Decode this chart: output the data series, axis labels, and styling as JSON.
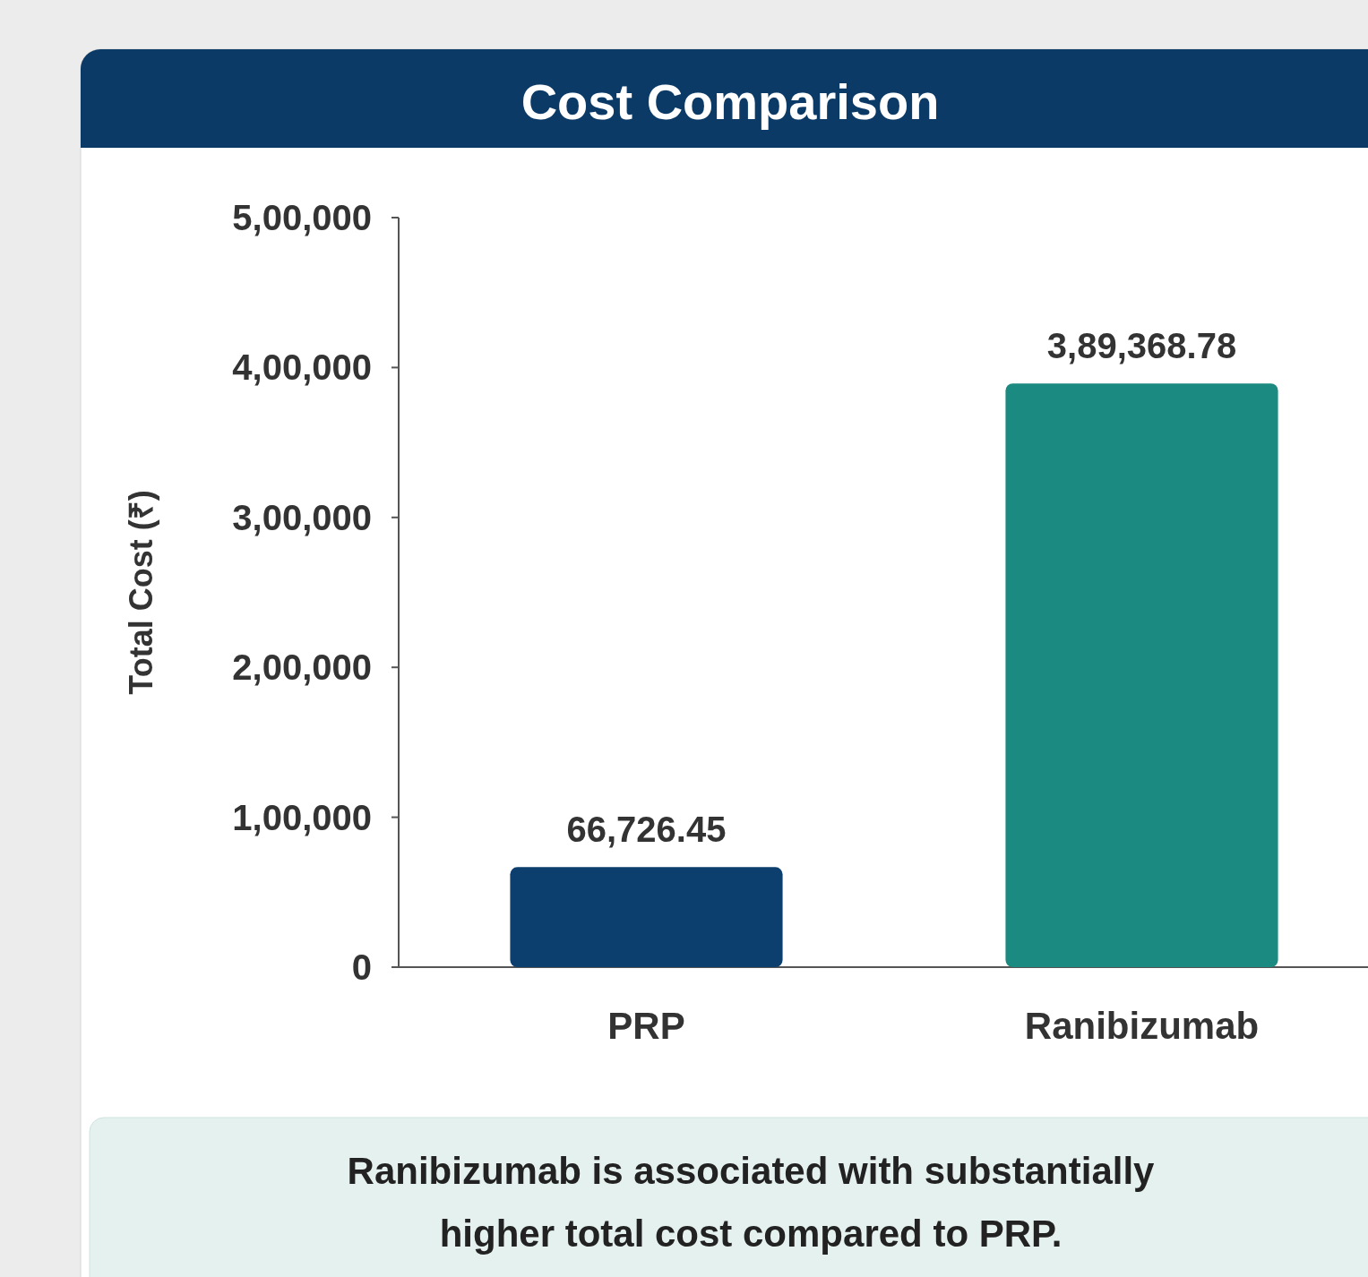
{
  "chart_data": {
    "type": "bar",
    "title": "Cost Comparison",
    "ylabel": "Total Cost (₹)",
    "categories": [
      "PRP",
      "Ranibizumab"
    ],
    "values": [
      66726.45,
      389368.78
    ],
    "colors": [
      "#0d3f6e",
      "#1b8a80"
    ],
    "value_labels": [
      "66,726.45",
      "3,89,368.78"
    ],
    "ylim": [
      0,
      500000
    ],
    "yticks": [
      0,
      {
        "value": 100000,
        "label": "1,00,000"
      },
      {
        "value": 200000,
        "label": "2,00,000"
      },
      {
        "value": 300000,
        "label": "3,00,000"
      },
      {
        "value": 400000,
        "label": "4,00,000"
      },
      {
        "value": 500000,
        "label": "5,00,000"
      }
    ],
    "annotations": [
      "Ranibizumab is associated with substantially higher total cost compared to PRP."
    ]
  }
}
